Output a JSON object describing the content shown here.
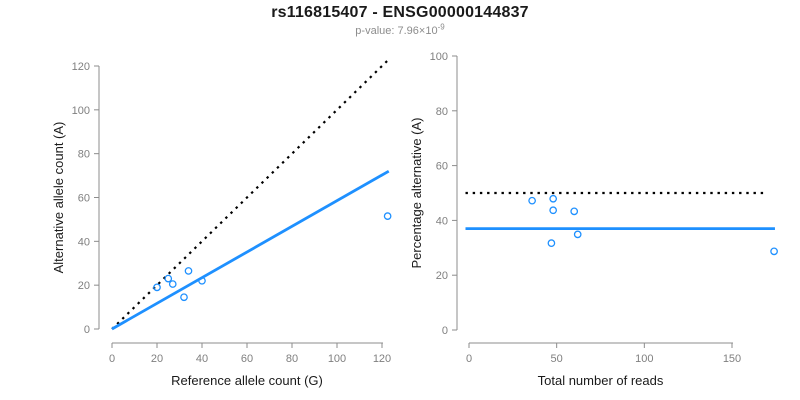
{
  "header": {
    "title": "rs116815407 - ENSG00000144837",
    "pvalue_prefix": "p-value: 7.96×10",
    "pvalue_exponent": "-9"
  },
  "colors": {
    "accent_blue": "#1E90FF",
    "line_black": "#000000",
    "axis_gray": "#8c8c8c",
    "tick_label_gray": "#7f7f7f",
    "axis_title_color": "#1a1a1a"
  },
  "chart_data": [
    {
      "id": "allele-counts",
      "type": "scatter",
      "xlabel": "Reference allele count (G)",
      "ylabel": "Alternative allele count (A)",
      "xticks": [
        0,
        20,
        40,
        60,
        80,
        100,
        120
      ],
      "yticks": [
        0,
        20,
        40,
        60,
        80,
        100,
        120
      ],
      "xlim": [
        0,
        123
      ],
      "ylim": [
        0,
        123
      ],
      "grid": false,
      "legend": "none",
      "points": [
        [
          20,
          19
        ],
        [
          25,
          23
        ],
        [
          27,
          20.5
        ],
        [
          34,
          26.5
        ],
        [
          32,
          14.5
        ],
        [
          40,
          22
        ],
        [
          122.5,
          51.5
        ]
      ],
      "lines": [
        {
          "name": "identity-line",
          "style": "dotted",
          "color": "#000000",
          "from": [
            0,
            0
          ],
          "to": [
            123,
            123
          ]
        },
        {
          "name": "fit-line",
          "style": "solid",
          "color": "#1E90FF",
          "from": [
            0,
            0
          ],
          "to": [
            123,
            72
          ]
        }
      ]
    },
    {
      "id": "percentage-alternative",
      "type": "scatter",
      "xlabel": "Total number of reads",
      "ylabel": "Percentage alternative (A)",
      "xticks": [
        0,
        50,
        100,
        150
      ],
      "yticks": [
        0,
        20,
        40,
        60,
        80,
        100
      ],
      "xlim": [
        0,
        175
      ],
      "ylim": [
        0,
        100
      ],
      "grid": false,
      "legend": "none",
      "points": [
        [
          36,
          47.2
        ],
        [
          48,
          47.9
        ],
        [
          48,
          43.7
        ],
        [
          60,
          43.3
        ],
        [
          62,
          34.9
        ],
        [
          47,
          31.7
        ],
        [
          174,
          28.7
        ]
      ],
      "lines": [
        {
          "name": "expected-50-line",
          "style": "dotted",
          "color": "#000000",
          "from": [
            -2,
            50
          ],
          "to": [
            170,
            50
          ]
        },
        {
          "name": "mean-percentage-line",
          "style": "solid",
          "color": "#1E90FF",
          "from": [
            -2,
            37
          ],
          "to": [
            174.5,
            37
          ]
        }
      ]
    }
  ]
}
